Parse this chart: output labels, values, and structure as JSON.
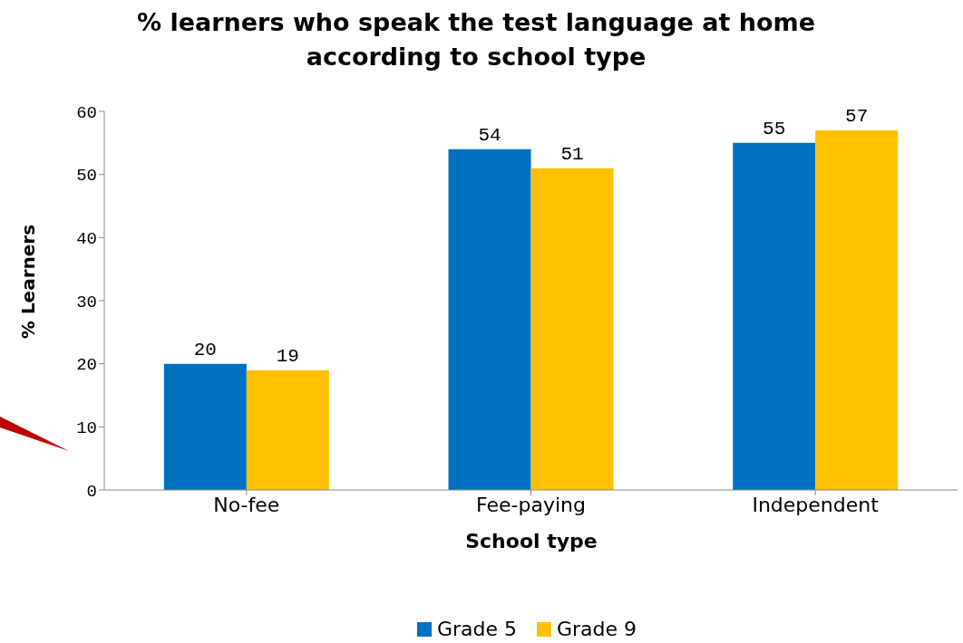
{
  "chart_data": {
    "type": "bar",
    "title": "% learners who speak the test language at home according to school type",
    "xlabel": "School type",
    "ylabel": "% Learners",
    "categories": [
      "No-fee",
      "Fee-paying",
      "Independent"
    ],
    "series": [
      {
        "name": "Grade 5",
        "color": "#0070c0",
        "values": [
          20,
          54,
          55
        ]
      },
      {
        "name": "Grade 9",
        "color": "#ffc000",
        "values": [
          19,
          51,
          57
        ]
      }
    ],
    "ylim": [
      0,
      60
    ],
    "yticks": [
      0,
      10,
      20,
      30,
      40,
      50,
      60
    ],
    "grid": false,
    "legend": "bottom",
    "data_labels": true
  }
}
